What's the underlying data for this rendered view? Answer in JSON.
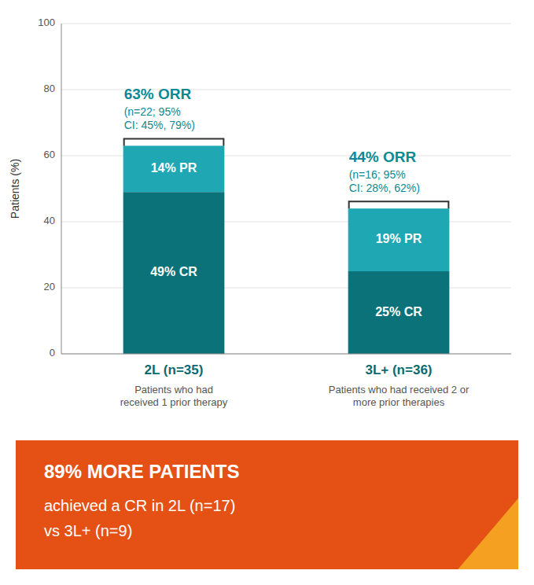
{
  "chart_data": {
    "type": "bar",
    "stacked": true,
    "data_labels": true,
    "categories": [
      "2L (n=35)",
      "3L+ (n=36)"
    ],
    "category_notes": [
      "Patients who had\nreceived 1 prior therapy",
      "Patients who had received 2 or\nmore prior therapies"
    ],
    "series": [
      {
        "color": "#0a7278",
        "values": [
          49,
          25
        ],
        "value_labels": [
          "49% CR",
          "25% CR"
        ]
      },
      {
        "color": "#1fa8b4",
        "values": [
          14,
          19
        ],
        "value_labels": [
          "14% PR",
          "19% PR"
        ]
      }
    ],
    "y_label": "Patients (%)",
    "ylim": [
      0,
      100
    ],
    "yticks": [
      0,
      20,
      40,
      60,
      80,
      100
    ],
    "grid": true,
    "annotations": [
      {
        "label": "63% ORR",
        "detail": [
          "(n=22; 95%",
          "CI: 45%, 79%)"
        ],
        "value": 63,
        "color": "#0a8a96"
      },
      {
        "label": "44% ORR",
        "detail": [
          "(n=16; 95%",
          "CI: 28%, 62%)"
        ],
        "value": 44,
        "color": "#0a8a96"
      }
    ],
    "banner": {
      "title": "89% MORE PATIENTS",
      "lines": [
        "achieved a CR in 2L (n=17)",
        "vs 3L+ (n=9)"
      ],
      "color": "#e55015",
      "accent_color": "#f5a020"
    }
  }
}
